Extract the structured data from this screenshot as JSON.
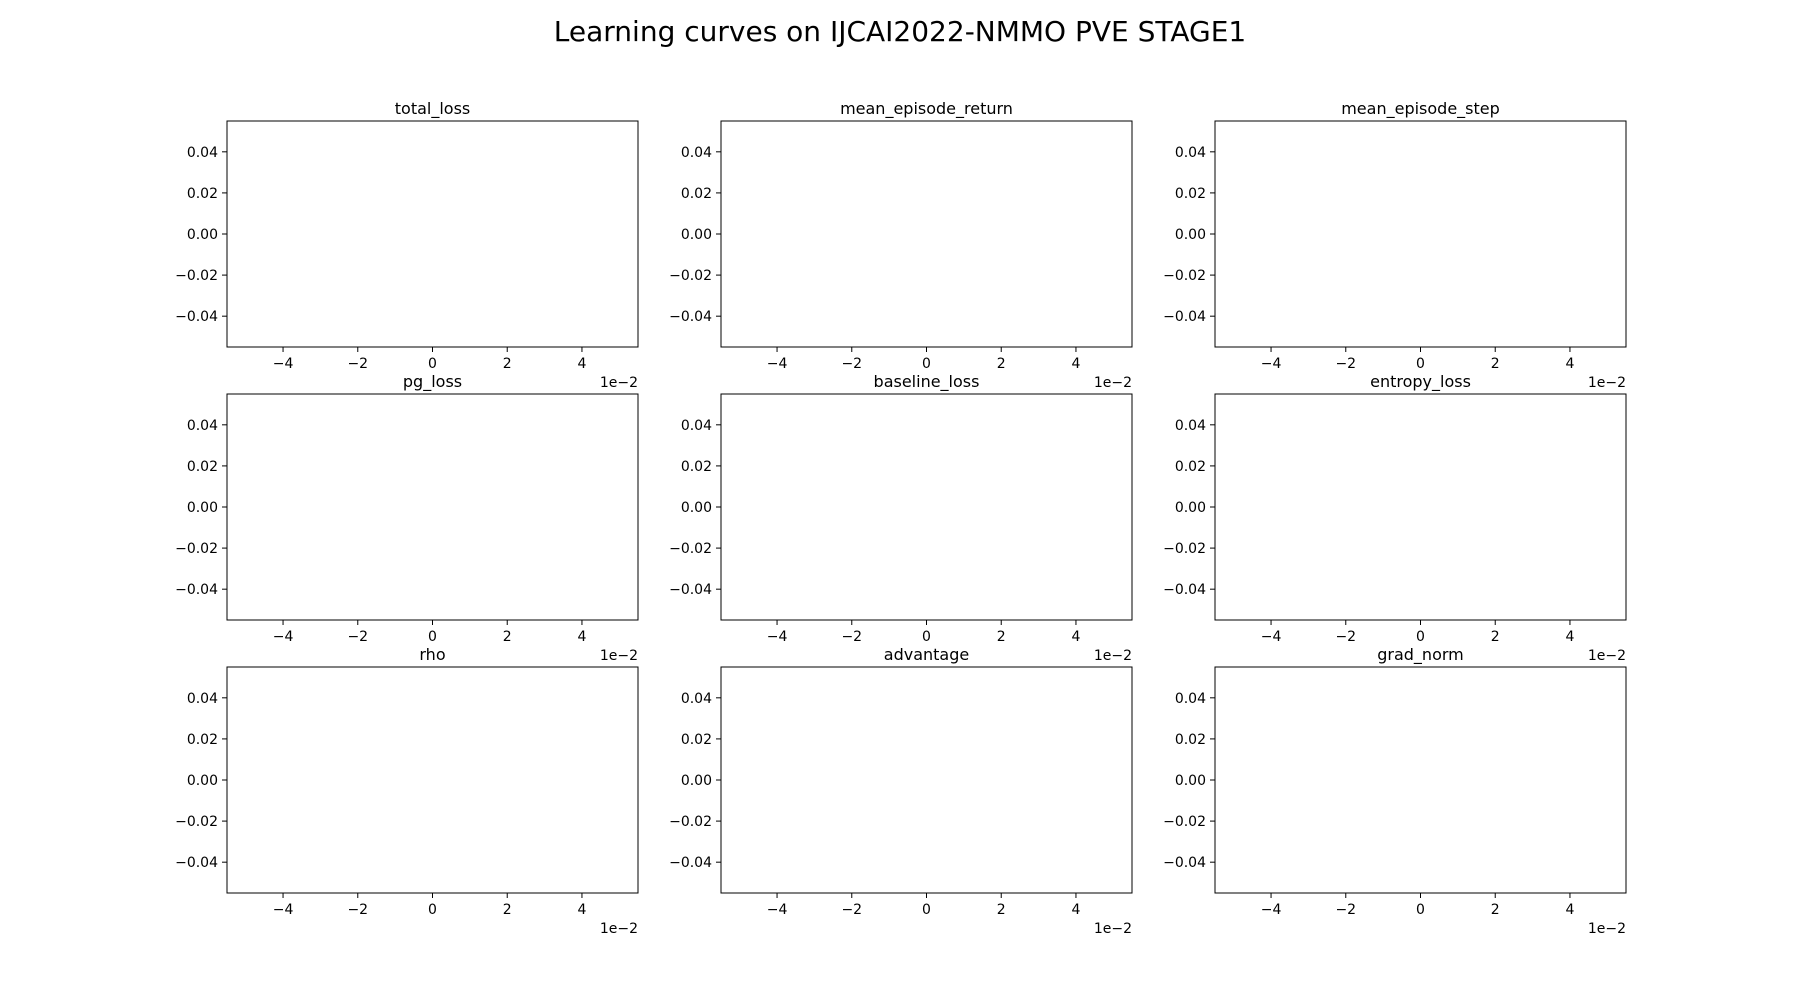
{
  "figure": {
    "title": "Learning curves on IJCAI2022-NMMO PVE STAGE1"
  },
  "chart_data": [
    {
      "type": "line",
      "title": "total_loss",
      "xlabel": "",
      "ylabel": "",
      "series": [],
      "xlim": [
        -0.055,
        0.055
      ],
      "ylim": [
        -0.055,
        0.055
      ],
      "xticks": [
        "−4",
        "−2",
        "0",
        "2",
        "4"
      ],
      "xtick_values": [
        -0.04,
        -0.02,
        0,
        0.02,
        0.04
      ],
      "x_offset_label": "1e−2",
      "yticks": [
        "0.04",
        "0.02",
        "0.00",
        "−0.02",
        "−0.04"
      ],
      "ytick_values": [
        0.04,
        0.02,
        0,
        -0.02,
        -0.04
      ],
      "grid": false
    },
    {
      "type": "line",
      "title": "mean_episode_return",
      "xlabel": "",
      "ylabel": "",
      "series": [],
      "xlim": [
        -0.055,
        0.055
      ],
      "ylim": [
        -0.055,
        0.055
      ],
      "xticks": [
        "−4",
        "−2",
        "0",
        "2",
        "4"
      ],
      "xtick_values": [
        -0.04,
        -0.02,
        0,
        0.02,
        0.04
      ],
      "x_offset_label": "1e−2",
      "yticks": [
        "0.04",
        "0.02",
        "0.00",
        "−0.02",
        "−0.04"
      ],
      "ytick_values": [
        0.04,
        0.02,
        0,
        -0.02,
        -0.04
      ],
      "grid": false
    },
    {
      "type": "line",
      "title": "mean_episode_step",
      "xlabel": "",
      "ylabel": "",
      "series": [],
      "xlim": [
        -0.055,
        0.055
      ],
      "ylim": [
        -0.055,
        0.055
      ],
      "xticks": [
        "−4",
        "−2",
        "0",
        "2",
        "4"
      ],
      "xtick_values": [
        -0.04,
        -0.02,
        0,
        0.02,
        0.04
      ],
      "x_offset_label": "1e−2",
      "yticks": [
        "0.04",
        "0.02",
        "0.00",
        "−0.02",
        "−0.04"
      ],
      "ytick_values": [
        0.04,
        0.02,
        0,
        -0.02,
        -0.04
      ],
      "grid": false
    },
    {
      "type": "line",
      "title": "pg_loss",
      "xlabel": "",
      "ylabel": "",
      "series": [],
      "xlim": [
        -0.055,
        0.055
      ],
      "ylim": [
        -0.055,
        0.055
      ],
      "xticks": [
        "−4",
        "−2",
        "0",
        "2",
        "4"
      ],
      "xtick_values": [
        -0.04,
        -0.02,
        0,
        0.02,
        0.04
      ],
      "x_offset_label": "1e−2",
      "yticks": [
        "0.04",
        "0.02",
        "0.00",
        "−0.02",
        "−0.04"
      ],
      "ytick_values": [
        0.04,
        0.02,
        0,
        -0.02,
        -0.04
      ],
      "grid": false
    },
    {
      "type": "line",
      "title": "baseline_loss",
      "xlabel": "",
      "ylabel": "",
      "series": [],
      "xlim": [
        -0.055,
        0.055
      ],
      "ylim": [
        -0.055,
        0.055
      ],
      "xticks": [
        "−4",
        "−2",
        "0",
        "2",
        "4"
      ],
      "xtick_values": [
        -0.04,
        -0.02,
        0,
        0.02,
        0.04
      ],
      "x_offset_label": "1e−2",
      "yticks": [
        "0.04",
        "0.02",
        "0.00",
        "−0.02",
        "−0.04"
      ],
      "ytick_values": [
        0.04,
        0.02,
        0,
        -0.02,
        -0.04
      ],
      "grid": false
    },
    {
      "type": "line",
      "title": "entropy_loss",
      "xlabel": "",
      "ylabel": "",
      "series": [],
      "xlim": [
        -0.055,
        0.055
      ],
      "ylim": [
        -0.055,
        0.055
      ],
      "xticks": [
        "−4",
        "−2",
        "0",
        "2",
        "4"
      ],
      "xtick_values": [
        -0.04,
        -0.02,
        0,
        0.02,
        0.04
      ],
      "x_offset_label": "1e−2",
      "yticks": [
        "0.04",
        "0.02",
        "0.00",
        "−0.02",
        "−0.04"
      ],
      "ytick_values": [
        0.04,
        0.02,
        0,
        -0.02,
        -0.04
      ],
      "grid": false
    },
    {
      "type": "line",
      "title": "rho",
      "xlabel": "",
      "ylabel": "",
      "series": [],
      "xlim": [
        -0.055,
        0.055
      ],
      "ylim": [
        -0.055,
        0.055
      ],
      "xticks": [
        "−4",
        "−2",
        "0",
        "2",
        "4"
      ],
      "xtick_values": [
        -0.04,
        -0.02,
        0,
        0.02,
        0.04
      ],
      "x_offset_label": "1e−2",
      "yticks": [
        "0.04",
        "0.02",
        "0.00",
        "−0.02",
        "−0.04"
      ],
      "ytick_values": [
        0.04,
        0.02,
        0,
        -0.02,
        -0.04
      ],
      "grid": false
    },
    {
      "type": "line",
      "title": "advantage",
      "xlabel": "",
      "ylabel": "",
      "series": [],
      "xlim": [
        -0.055,
        0.055
      ],
      "ylim": [
        -0.055,
        0.055
      ],
      "xticks": [
        "−4",
        "−2",
        "0",
        "2",
        "4"
      ],
      "xtick_values": [
        -0.04,
        -0.02,
        0,
        0.02,
        0.04
      ],
      "x_offset_label": "1e−2",
      "yticks": [
        "0.04",
        "0.02",
        "0.00",
        "−0.02",
        "−0.04"
      ],
      "ytick_values": [
        0.04,
        0.02,
        0,
        -0.02,
        -0.04
      ],
      "grid": false
    },
    {
      "type": "line",
      "title": "grad_norm",
      "xlabel": "",
      "ylabel": "",
      "series": [],
      "xlim": [
        -0.055,
        0.055
      ],
      "ylim": [
        -0.055,
        0.055
      ],
      "xticks": [
        "−4",
        "−2",
        "0",
        "2",
        "4"
      ],
      "xtick_values": [
        -0.04,
        -0.02,
        0,
        0.02,
        0.04
      ],
      "x_offset_label": "1e−2",
      "yticks": [
        "0.04",
        "0.02",
        "0.00",
        "−0.02",
        "−0.04"
      ],
      "ytick_values": [
        0.04,
        0.02,
        0,
        -0.02,
        -0.04
      ],
      "grid": false
    }
  ]
}
